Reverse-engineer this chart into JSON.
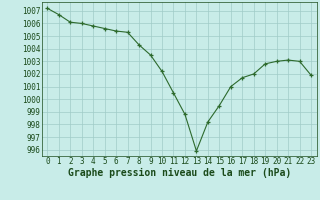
{
  "x": [
    0,
    1,
    2,
    3,
    4,
    5,
    6,
    7,
    8,
    9,
    10,
    11,
    12,
    13,
    14,
    15,
    16,
    17,
    18,
    19,
    20,
    21,
    22,
    23
  ],
  "y": [
    1007.2,
    1006.7,
    1006.1,
    1006.0,
    1005.8,
    1005.6,
    1005.4,
    1005.3,
    1004.3,
    1003.5,
    1002.2,
    1000.5,
    998.8,
    995.9,
    998.2,
    999.5,
    1001.0,
    1001.7,
    1002.0,
    1002.8,
    1003.0,
    1003.1,
    1003.0,
    1001.9
  ],
  "line_color": "#2d6a2d",
  "marker_color": "#2d6a2d",
  "bg_color": "#c8ece8",
  "grid_color": "#a0ccc8",
  "xlabel": "Graphe pression niveau de la mer (hPa)",
  "xlabel_color": "#1a4a1a",
  "ylim": [
    995.5,
    1007.7
  ],
  "yticks": [
    996,
    997,
    998,
    999,
    1000,
    1001,
    1002,
    1003,
    1004,
    1005,
    1006,
    1007
  ],
  "xticks": [
    0,
    1,
    2,
    3,
    4,
    5,
    6,
    7,
    8,
    9,
    10,
    11,
    12,
    13,
    14,
    15,
    16,
    17,
    18,
    19,
    20,
    21,
    22,
    23
  ],
  "tick_color": "#1a4a1a",
  "tick_fontsize": 5.5,
  "xlabel_fontsize": 7.0
}
